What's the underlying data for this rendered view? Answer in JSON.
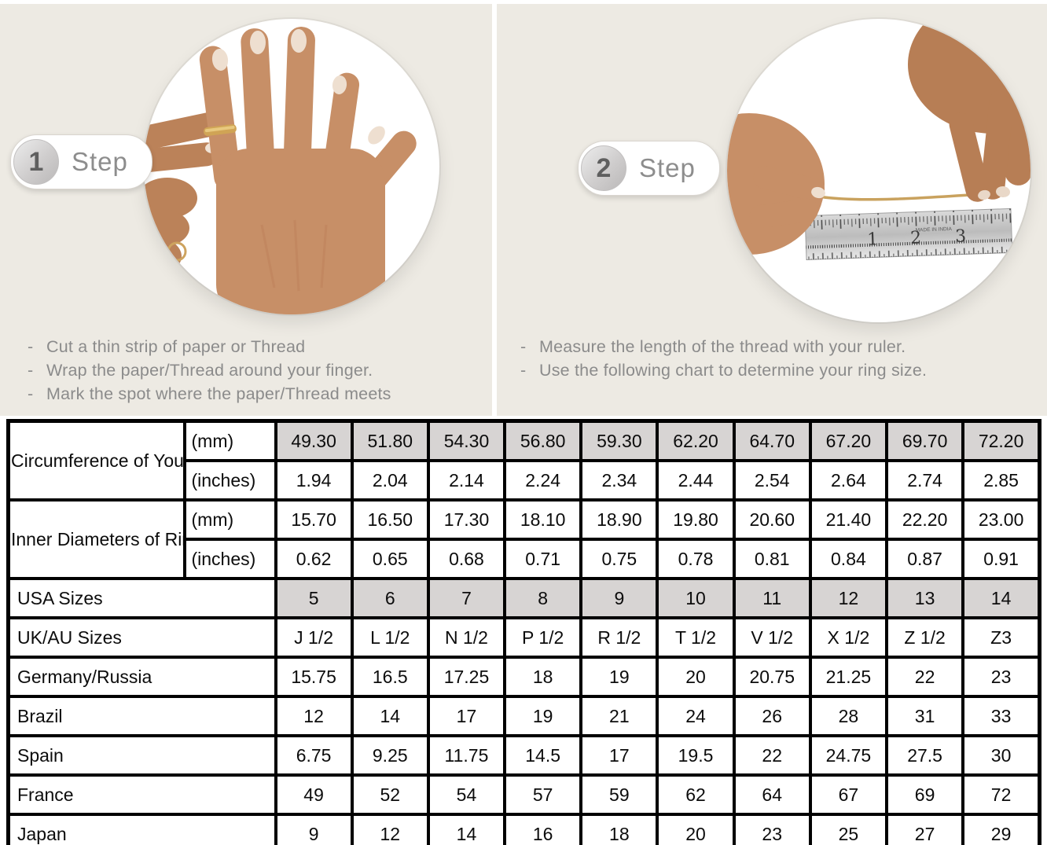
{
  "bullet": "-",
  "colors": {
    "background_beige": "#edeae3",
    "table_shaded_cell": "#d7d4d3",
    "table_border": "#000000",
    "instruction_text": "#8b8b8b",
    "thread_gold": "#c9a25e",
    "skin_tone": "#c78f67"
  },
  "steps": [
    {
      "number": "1",
      "label": "Step",
      "photo": "hand-with-ring-photo",
      "instructions": [
        "Cut a thin strip of paper or Thread",
        "Wrap the paper/Thread around your finger.",
        "Mark the spot where the paper/Thread meets"
      ]
    },
    {
      "number": "2",
      "label": "Step",
      "photo": "thread-over-ruler-photo",
      "ruler_numbers": [
        "1",
        "2",
        "3"
      ],
      "ruler_fine_print": "MADE IN INDIA",
      "instructions": [
        "Measure the length of the thread with your ruler.",
        "Use the following chart to determine your ring size."
      ]
    }
  ],
  "table": {
    "groups": [
      {
        "label": "Circumference of Your Finger",
        "rows": [
          {
            "unit": "(mm)",
            "shaded": true,
            "values": [
              "49.30",
              "51.80",
              "54.30",
              "56.80",
              "59.30",
              "62.20",
              "64.70",
              "67.20",
              "69.70",
              "72.20"
            ]
          },
          {
            "unit": "(inches)",
            "shaded": false,
            "values": [
              "1.94",
              "2.04",
              "2.14",
              "2.24",
              "2.34",
              "2.44",
              "2.54",
              "2.64",
              "2.74",
              "2.85"
            ]
          }
        ]
      },
      {
        "label": "Inner Diameters of Rings",
        "rows": [
          {
            "unit": "(mm)",
            "shaded": false,
            "values": [
              "15.70",
              "16.50",
              "17.30",
              "18.10",
              "18.90",
              "19.80",
              "20.60",
              "21.40",
              "22.20",
              "23.00"
            ]
          },
          {
            "unit": "(inches)",
            "shaded": false,
            "values": [
              "0.62",
              "0.65",
              "0.68",
              "0.71",
              "0.75",
              "0.78",
              "0.81",
              "0.84",
              "0.87",
              "0.91"
            ]
          }
        ]
      }
    ],
    "size_rows": [
      {
        "label": "USA Sizes",
        "shaded": true,
        "values": [
          "5",
          "6",
          "7",
          "8",
          "9",
          "10",
          "11",
          "12",
          "13",
          "14"
        ]
      },
      {
        "label": "UK/AU Sizes",
        "shaded": false,
        "values": [
          "J 1/2",
          "L 1/2",
          "N 1/2",
          "P 1/2",
          "R 1/2",
          "T 1/2",
          "V 1/2",
          "X 1/2",
          "Z 1/2",
          "Z3"
        ]
      },
      {
        "label": "Germany/Russia",
        "shaded": false,
        "values": [
          "15.75",
          "16.5",
          "17.25",
          "18",
          "19",
          "20",
          "20.75",
          "21.25",
          "22",
          "23"
        ]
      },
      {
        "label": "Brazil",
        "shaded": false,
        "values": [
          "12",
          "14",
          "17",
          "19",
          "21",
          "24",
          "26",
          "28",
          "31",
          "33"
        ]
      },
      {
        "label": "Spain",
        "shaded": false,
        "values": [
          "6.75",
          "9.25",
          "11.75",
          "14.5",
          "17",
          "19.5",
          "22",
          "24.75",
          "27.5",
          "30"
        ]
      },
      {
        "label": "France",
        "shaded": false,
        "values": [
          "49",
          "52",
          "54",
          "57",
          "59",
          "62",
          "64",
          "67",
          "69",
          "72"
        ]
      },
      {
        "label": "Japan",
        "shaded": false,
        "values": [
          "9",
          "12",
          "14",
          "16",
          "18",
          "20",
          "23",
          "25",
          "27",
          "29"
        ]
      }
    ]
  }
}
